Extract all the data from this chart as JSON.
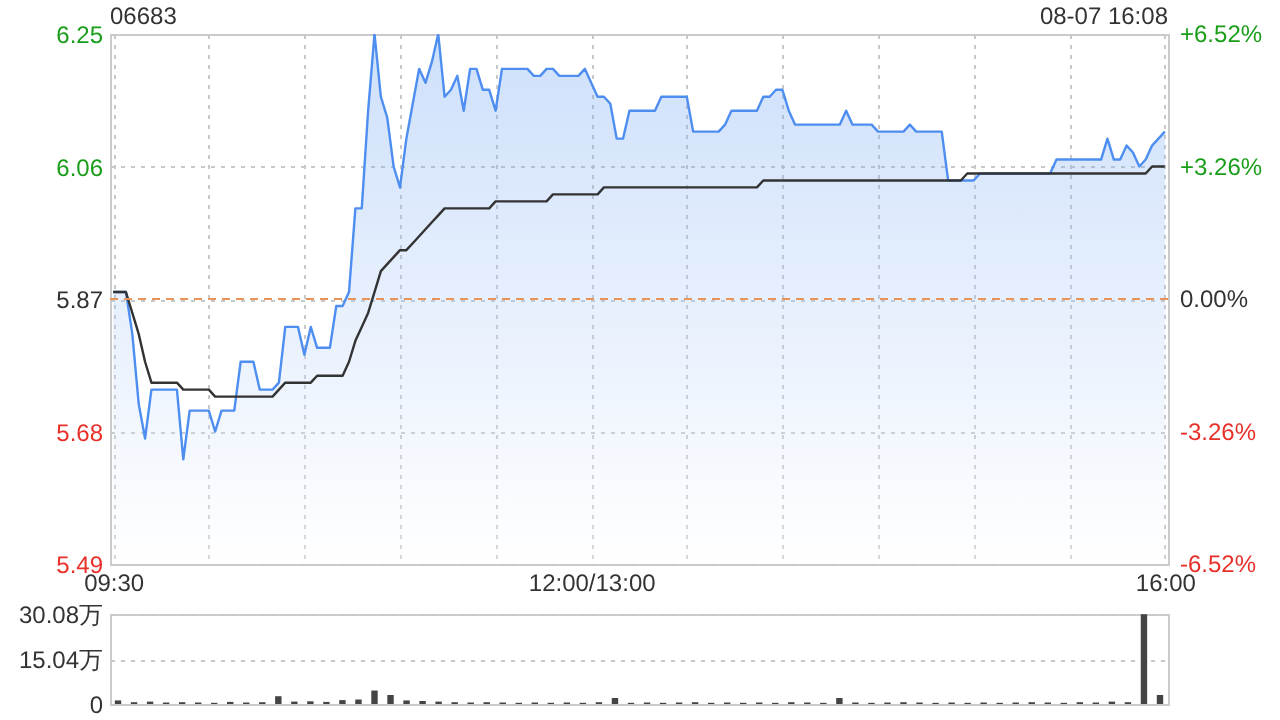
{
  "chart_data": [
    {
      "type": "line",
      "title": "06683",
      "annotations": [
        "08-07 16:08"
      ],
      "categories": [
        "09:30",
        null,
        null,
        null,
        null,
        null,
        null,
        null,
        null,
        null,
        null,
        null,
        null,
        null,
        null,
        null,
        null,
        null,
        null,
        null,
        null,
        null,
        null,
        null,
        null,
        null,
        null,
        null,
        null,
        null,
        null,
        null,
        null,
        null,
        null,
        null,
        null,
        null,
        null,
        null,
        null,
        null,
        null,
        null,
        null,
        null,
        null,
        null,
        null,
        null,
        null,
        null,
        null,
        null,
        null,
        null,
        null,
        null,
        null,
        null,
        null,
        null,
        null,
        null,
        null,
        null,
        null,
        null,
        null,
        null,
        null,
        null,
        null,
        null,
        null,
        "12:00/13:00",
        null,
        null,
        null,
        null,
        null,
        null,
        null,
        null,
        null,
        null,
        null,
        null,
        null,
        null,
        null,
        null,
        null,
        null,
        null,
        null,
        null,
        null,
        null,
        null,
        null,
        null,
        null,
        null,
        null,
        null,
        null,
        null,
        null,
        null,
        null,
        null,
        null,
        null,
        null,
        null,
        null,
        null,
        null,
        null,
        null,
        null,
        null,
        null,
        null,
        null,
        null,
        null,
        null,
        null,
        null,
        null,
        null,
        null,
        null,
        null,
        null,
        null,
        null,
        null,
        null,
        null,
        null,
        null,
        null,
        null,
        null,
        null,
        null,
        null,
        null,
        null,
        null,
        null,
        null,
        null,
        null,
        null,
        null,
        null,
        null,
        null,
        null,
        null,
        null,
        "16:00"
      ],
      "ylim": [
        5.49,
        6.25
      ],
      "yticks": [
        5.49,
        5.68,
        5.87,
        6.06,
        6.25
      ],
      "y2lim": [
        -6.52,
        6.52
      ],
      "y2ticks": [
        {
          "value": -6.52,
          "label": "-6.52%"
        },
        {
          "value": -3.26,
          "label": "-3.26%"
        },
        {
          "value": 0,
          "label": "0.00%"
        },
        {
          "value": 3.26,
          "label": "+3.26%"
        },
        {
          "value": 6.52,
          "label": "+6.52%"
        }
      ],
      "grid": true,
      "ref_lines": [
        {
          "axis": "y",
          "value": 5.87,
          "color": "#e8935a",
          "line_style": "dashed"
        }
      ],
      "series": [
        {
          "type": "area",
          "color": "#4d8ef0",
          "values": [
            5.88,
            5.88,
            5.88,
            5.82,
            5.72,
            5.67,
            5.74,
            5.74,
            5.74,
            5.74,
            5.74,
            5.64,
            5.71,
            5.71,
            5.71,
            5.71,
            5.68,
            5.71,
            5.71,
            5.71,
            5.78,
            5.78,
            5.78,
            5.74,
            5.74,
            5.74,
            5.75,
            5.83,
            5.83,
            5.83,
            5.79,
            5.83,
            5.8,
            5.8,
            5.8,
            5.86,
            5.86,
            5.88,
            6.0,
            6.0,
            6.14,
            6.25,
            6.16,
            6.13,
            6.06,
            6.03,
            6.1,
            6.15,
            6.2,
            6.18,
            6.21,
            6.25,
            6.16,
            6.17,
            6.19,
            6.14,
            6.2,
            6.2,
            6.17,
            6.17,
            6.14,
            6.2,
            6.2,
            6.2,
            6.2,
            6.2,
            6.19,
            6.19,
            6.2,
            6.2,
            6.19,
            6.19,
            6.19,
            6.19,
            6.2,
            6.18,
            6.16,
            6.16,
            6.15,
            6.1,
            6.1,
            6.14,
            6.14,
            6.14,
            6.14,
            6.14,
            6.16,
            6.16,
            6.16,
            6.16,
            6.16,
            6.11,
            6.11,
            6.11,
            6.11,
            6.11,
            6.12,
            6.14,
            6.14,
            6.14,
            6.14,
            6.14,
            6.16,
            6.16,
            6.17,
            6.17,
            6.14,
            6.12,
            6.12,
            6.12,
            6.12,
            6.12,
            6.12,
            6.12,
            6.12,
            6.14,
            6.12,
            6.12,
            6.12,
            6.12,
            6.11,
            6.11,
            6.11,
            6.11,
            6.11,
            6.12,
            6.11,
            6.11,
            6.11,
            6.11,
            6.11,
            6.04,
            6.04,
            6.04,
            6.04,
            6.04,
            6.05,
            6.05,
            6.05,
            6.05,
            6.05,
            6.05,
            6.05,
            6.05,
            6.05,
            6.05,
            6.05,
            6.05,
            6.07,
            6.07,
            6.07,
            6.07,
            6.07,
            6.07,
            6.07,
            6.07,
            6.1,
            6.07,
            6.07,
            6.09,
            6.08,
            6.06,
            6.07,
            6.09,
            6.1,
            6.11
          ]
        },
        {
          "color": "#333333",
          "values": [
            5.88,
            5.88,
            5.88,
            5.85,
            5.82,
            5.78,
            5.75,
            5.75,
            5.75,
            5.75,
            5.75,
            5.74,
            5.74,
            5.74,
            5.74,
            5.74,
            5.73,
            5.73,
            5.73,
            5.73,
            5.73,
            5.73,
            5.73,
            5.73,
            5.73,
            5.73,
            5.74,
            5.75,
            5.75,
            5.75,
            5.75,
            5.75,
            5.76,
            5.76,
            5.76,
            5.76,
            5.76,
            5.78,
            5.81,
            5.83,
            5.85,
            5.88,
            5.91,
            5.92,
            5.93,
            5.94,
            5.94,
            5.95,
            5.96,
            5.97,
            5.98,
            5.99,
            6.0,
            6.0,
            6.0,
            6.0,
            6.0,
            6.0,
            6.0,
            6.0,
            6.01,
            6.01,
            6.01,
            6.01,
            6.01,
            6.01,
            6.01,
            6.01,
            6.01,
            6.02,
            6.02,
            6.02,
            6.02,
            6.02,
            6.02,
            6.02,
            6.02,
            6.03,
            6.03,
            6.03,
            6.03,
            6.03,
            6.03,
            6.03,
            6.03,
            6.03,
            6.03,
            6.03,
            6.03,
            6.03,
            6.03,
            6.03,
            6.03,
            6.03,
            6.03,
            6.03,
            6.03,
            6.03,
            6.03,
            6.03,
            6.03,
            6.03,
            6.04,
            6.04,
            6.04,
            6.04,
            6.04,
            6.04,
            6.04,
            6.04,
            6.04,
            6.04,
            6.04,
            6.04,
            6.04,
            6.04,
            6.04,
            6.04,
            6.04,
            6.04,
            6.04,
            6.04,
            6.04,
            6.04,
            6.04,
            6.04,
            6.04,
            6.04,
            6.04,
            6.04,
            6.04,
            6.04,
            6.04,
            6.04,
            6.05,
            6.05,
            6.05,
            6.05,
            6.05,
            6.05,
            6.05,
            6.05,
            6.05,
            6.05,
            6.05,
            6.05,
            6.05,
            6.05,
            6.05,
            6.05,
            6.05,
            6.05,
            6.05,
            6.05,
            6.05,
            6.05,
            6.05,
            6.05,
            6.05,
            6.05,
            6.05,
            6.05,
            6.05,
            6.06,
            6.06,
            6.06
          ]
        }
      ]
    },
    {
      "type": "bar",
      "categories": [
        null,
        null,
        null,
        null,
        null,
        null,
        null,
        null,
        null,
        null,
        null,
        null,
        null,
        null,
        null,
        null,
        null,
        null,
        null,
        null,
        null,
        null,
        null,
        null,
        null,
        null,
        null,
        null,
        null,
        null,
        null,
        null,
        null,
        null,
        null,
        null,
        null,
        null,
        null,
        null,
        null,
        null,
        null,
        null,
        null,
        null,
        null,
        null,
        null,
        null,
        null,
        null,
        null,
        null,
        null,
        null,
        null,
        null,
        null,
        null,
        null,
        null,
        null,
        null,
        null,
        null
      ],
      "ylim": [
        0,
        30.08
      ],
      "yticks": [
        0,
        {
          "value": 15.04,
          "label": "15.04万"
        },
        {
          "value": 30.08,
          "label": "30.08万"
        }
      ],
      "grid": "y",
      "tick_labels": "y",
      "series": [
        {
          "color": "#444444",
          "values": [
            1.2,
            0.6,
            0.8,
            0.5,
            0.6,
            0.5,
            0.4,
            0.7,
            0.5,
            0.6,
            2.6,
            0.8,
            0.9,
            0.7,
            1.3,
            1.5,
            4.5,
            3.0,
            1.2,
            1.0,
            0.8,
            0.6,
            0.5,
            0.6,
            0.5,
            0.4,
            0.5,
            0.4,
            0.5,
            0.4,
            0.6,
            2.0,
            0.4,
            0.5,
            0.4,
            0.5,
            0.6,
            0.4,
            0.5,
            0.4,
            0.5,
            0.4,
            0.6,
            0.5,
            0.4,
            2.0,
            0.5,
            0.4,
            0.5,
            0.6,
            0.5,
            0.4,
            0.5,
            0.4,
            0.5,
            0.4,
            0.5,
            0.6,
            0.5,
            0.4,
            0.6,
            0.5,
            0.8,
            0.6,
            30,
            3.0
          ]
        }
      ]
    }
  ]
}
